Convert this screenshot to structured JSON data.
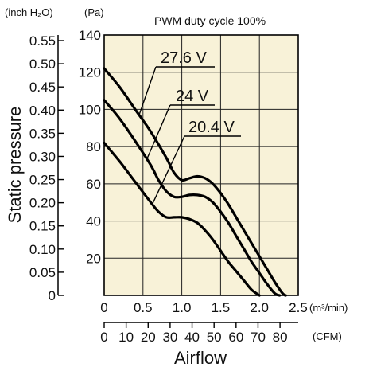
{
  "chart_data": {
    "type": "line",
    "title": "PWM duty cycle 100%",
    "xlabel": "Airflow",
    "ylabel": "Static pressure",
    "x_units": {
      "primary": "(m³/min)",
      "secondary": "(CFM)"
    },
    "y_units": {
      "left": "(inch H₂O)",
      "right": "(Pa)"
    },
    "xlim": [
      0,
      2.5
    ],
    "ylim": [
      0,
      140
    ],
    "x_ticks_primary": [
      "0",
      "0.5",
      "1.0",
      "1.5",
      "2.0",
      "2.5"
    ],
    "x_tick_values_primary": [
      0,
      0.5,
      1.0,
      1.5,
      2.0,
      2.5
    ],
    "x_ticks_secondary": [
      "0",
      "10",
      "20",
      "30",
      "40",
      "50",
      "60",
      "70",
      "80"
    ],
    "x_tick_values_secondary": [
      0,
      10,
      20,
      30,
      40,
      50,
      60,
      70,
      80
    ],
    "y_ticks_pa": [
      "20",
      "40",
      "60",
      "80",
      "100",
      "120",
      "140"
    ],
    "y_tick_values_pa": [
      20,
      40,
      60,
      80,
      100,
      120,
      140
    ],
    "y_ticks_inch": [
      "0",
      "0.05",
      "0.10",
      "0.15",
      "0.20",
      "0.25",
      "0.30",
      "0.35",
      "0.40",
      "0.45",
      "0.50",
      "0.55"
    ],
    "y_tick_values_inch": [
      0,
      0.05,
      0.1,
      0.15,
      0.2,
      0.25,
      0.3,
      0.35,
      0.4,
      0.45,
      0.5,
      0.55
    ],
    "grid": true,
    "background_color": "#f8f2d8",
    "series": [
      {
        "name": "27.6 V",
        "x": [
          0,
          0.2,
          0.4,
          0.6,
          0.8,
          0.9,
          1.0,
          1.1,
          1.2,
          1.3,
          1.4,
          1.5,
          1.6,
          1.7,
          1.8,
          1.9,
          2.0,
          2.1,
          2.2,
          2.3,
          2.34
        ],
        "y": [
          122,
          112,
          100,
          88,
          74,
          66,
          62,
          63,
          64,
          63,
          60,
          55,
          49,
          42,
          35,
          28,
          21,
          14,
          7,
          1,
          0
        ]
      },
      {
        "name": "24 V",
        "x": [
          0,
          0.2,
          0.4,
          0.6,
          0.7,
          0.8,
          0.9,
          1.0,
          1.1,
          1.2,
          1.3,
          1.4,
          1.5,
          1.6,
          1.7,
          1.8,
          1.9,
          2.0,
          2.1,
          2.2,
          2.26
        ],
        "y": [
          105,
          95,
          83,
          70,
          62,
          56,
          53,
          53,
          54,
          54,
          53,
          50,
          45,
          39,
          32,
          25,
          18,
          12,
          6,
          1,
          0
        ]
      },
      {
        "name": "20.4 V",
        "x": [
          0,
          0.2,
          0.4,
          0.6,
          0.7,
          0.8,
          0.9,
          1.0,
          1.1,
          1.2,
          1.3,
          1.4,
          1.5,
          1.6,
          1.7,
          1.8,
          1.9,
          2.0
        ],
        "y": [
          82,
          72,
          61,
          50,
          45,
          42,
          42,
          42,
          41,
          39,
          35,
          30,
          24,
          18,
          13,
          8,
          3,
          0
        ]
      }
    ]
  }
}
